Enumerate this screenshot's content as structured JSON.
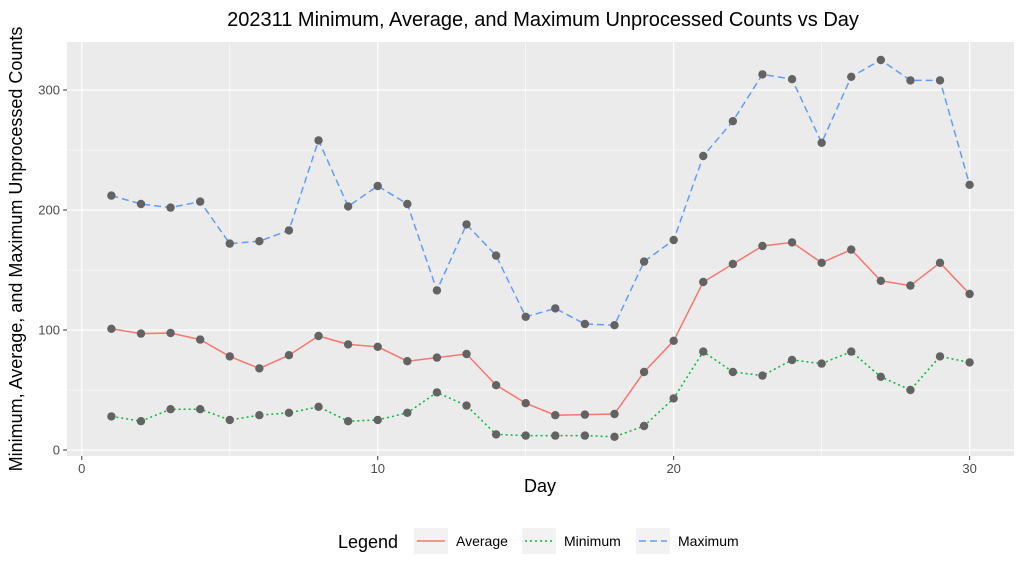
{
  "chart_data": {
    "type": "line",
    "title": "202311 Minimum, Average, and Maximum Unprocessed Counts vs Day",
    "xlabel": "Day",
    "ylabel": "Minimum, Average, and Maximum Unprocessed Counts",
    "xlim": [
      -0.5,
      31.5
    ],
    "ylim": [
      -5,
      340
    ],
    "xticks": [
      0,
      10,
      20,
      30
    ],
    "xtick_labels": [
      "0",
      "10",
      "20",
      "30"
    ],
    "yticks": [
      0,
      100,
      200,
      300
    ],
    "ytick_labels": [
      "0",
      "100",
      "200",
      "300"
    ],
    "grid": true,
    "legend": {
      "title": "Legend",
      "position": "bottom"
    },
    "x": [
      1,
      2,
      3,
      4,
      5,
      6,
      7,
      8,
      9,
      10,
      11,
      12,
      13,
      14,
      15,
      16,
      17,
      18,
      19,
      20,
      21,
      22,
      23,
      24,
      25,
      26,
      27,
      28,
      29,
      30
    ],
    "series": [
      {
        "name": "Average",
        "color": "#F8766D",
        "dash": "solid",
        "values": [
          101,
          97,
          97.5,
          92,
          78,
          68,
          79,
          95,
          88,
          86,
          74,
          77,
          80,
          54,
          39,
          29,
          29.5,
          30,
          65,
          91,
          140,
          155,
          170,
          173,
          156,
          167,
          141,
          137,
          156,
          130
        ]
      },
      {
        "name": "Minimum",
        "color": "#00BA38",
        "dash": "dotted",
        "values": [
          28,
          24,
          34,
          34,
          25,
          29,
          31,
          36,
          24,
          25,
          31,
          48,
          37,
          13,
          12,
          12,
          12,
          11,
          20,
          43,
          82,
          65,
          62,
          75,
          72,
          82,
          61,
          50,
          78,
          73
        ]
      },
      {
        "name": "Maximum",
        "color": "#619CFF",
        "dash": "dashed",
        "values": [
          212,
          205,
          202,
          207,
          172,
          174,
          183,
          258,
          203,
          220,
          205,
          133,
          188,
          162,
          111,
          118,
          105,
          104,
          157,
          175,
          245,
          274,
          313,
          309,
          256,
          311,
          325,
          308,
          308,
          221
        ]
      }
    ],
    "point_color": "#636363"
  }
}
